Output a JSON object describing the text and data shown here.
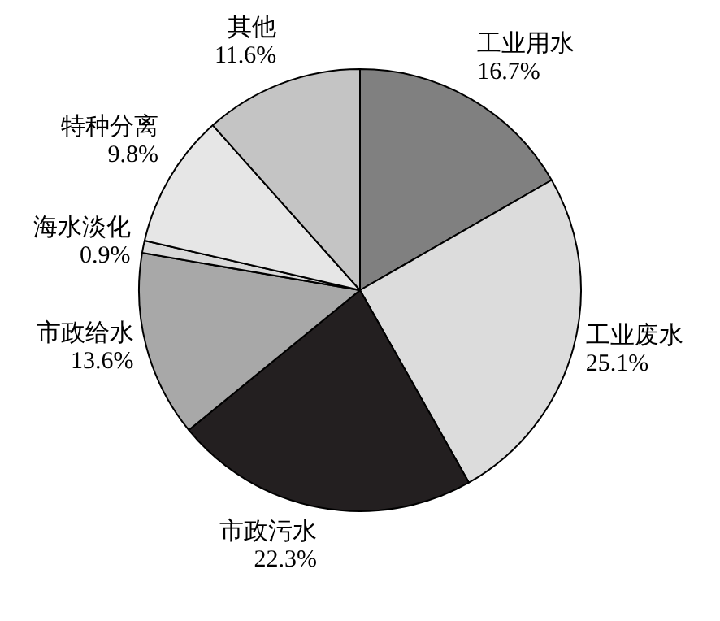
{
  "chart_data": {
    "type": "pie",
    "categories": [
      "工业用水",
      "工业废水",
      "市政污水",
      "市政给水",
      "海水淡化",
      "特种分离",
      "其他"
    ],
    "values": [
      16.7,
      25.1,
      22.3,
      13.6,
      0.9,
      9.8,
      11.6
    ],
    "colors": [
      "#808080",
      "#dcdcdc",
      "#231f20",
      "#a8a8a8",
      "#d8d8d8",
      "#e6e6e6",
      "#c4c4c4"
    ],
    "value_labels": [
      "16.7%",
      "25.1%",
      "22.3%",
      "13.6%",
      "0.9%",
      "9.8%",
      "11.6%"
    ],
    "legend": false
  }
}
